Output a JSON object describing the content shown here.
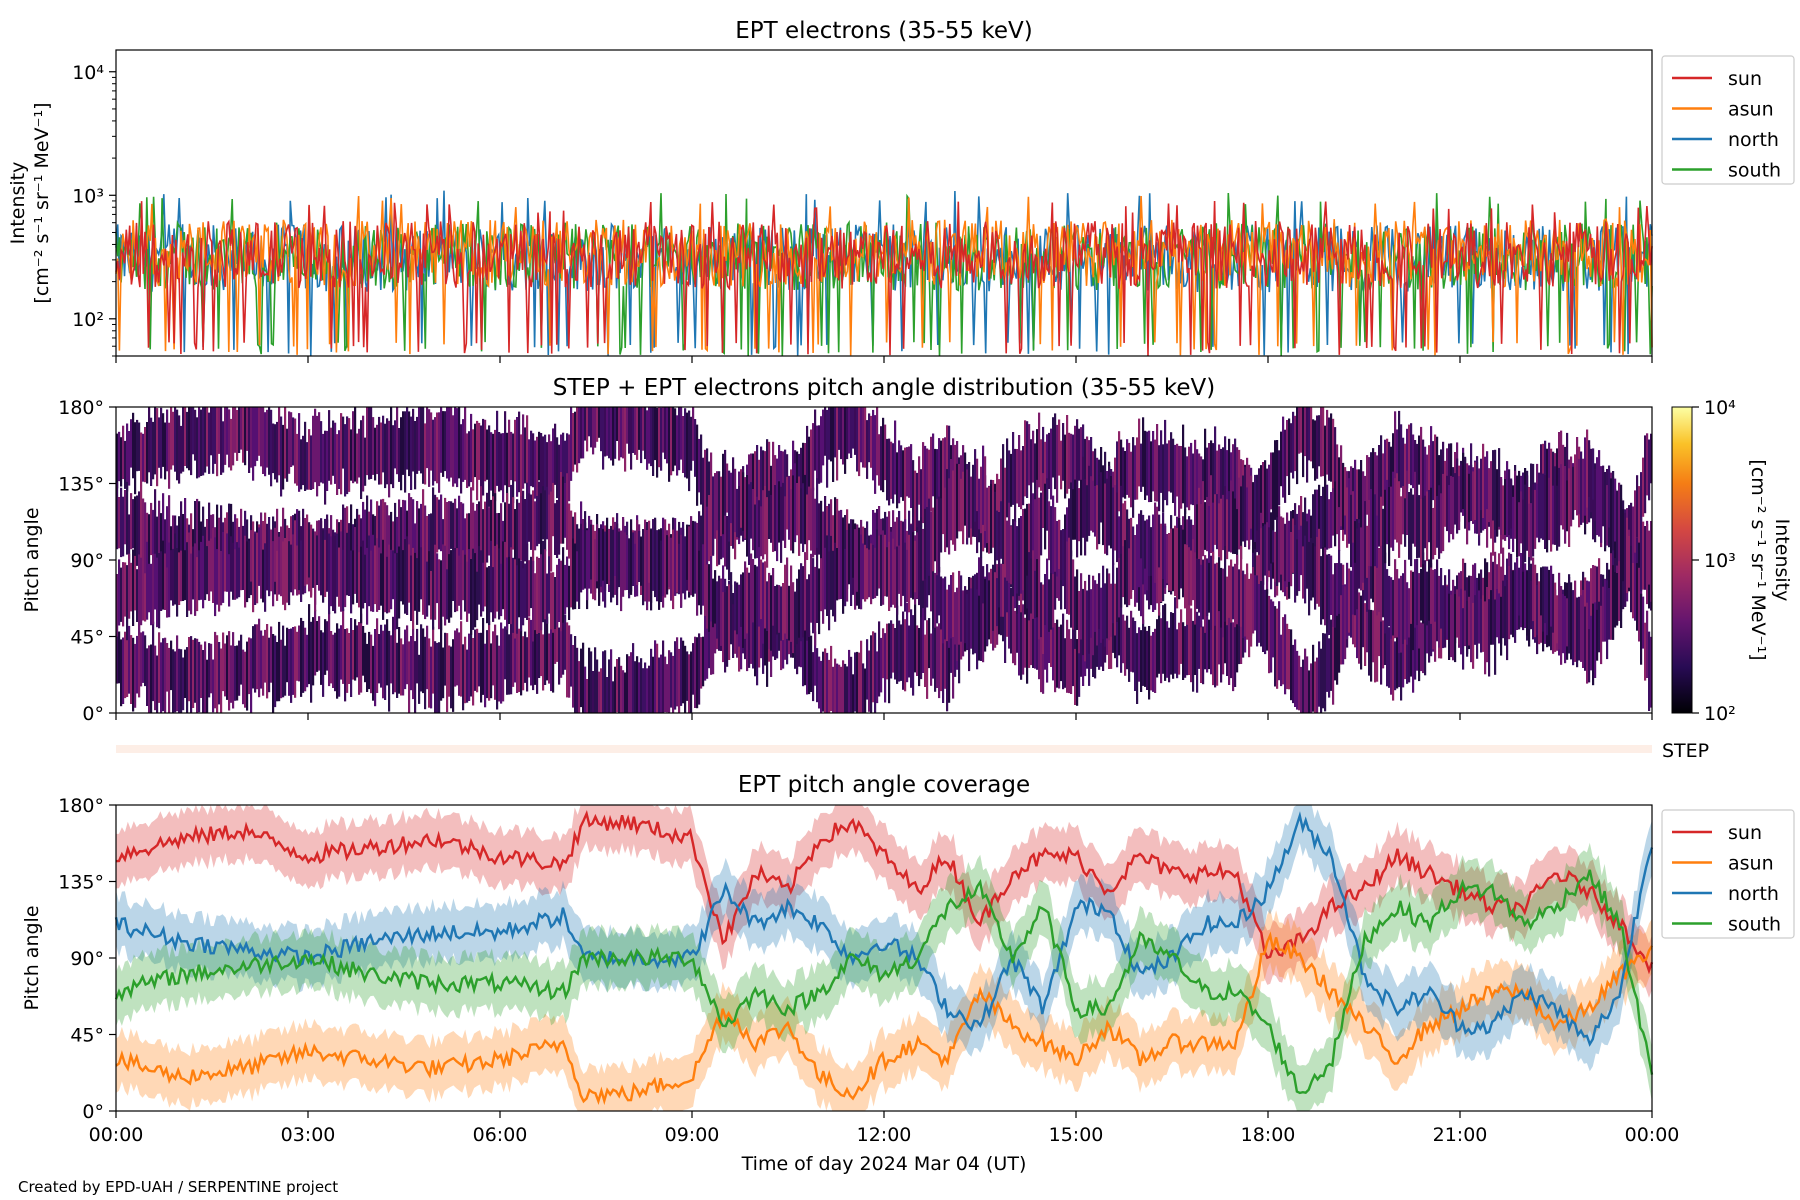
{
  "footer": "Created by EPD-UAH / SERPENTINE project",
  "colors": {
    "sun": "#d62728",
    "asun": "#ff7f0e",
    "north": "#1f77b4",
    "south": "#2ca02c"
  },
  "chart_data": [
    {
      "type": "line",
      "title": "EPT electrons (35-55 keV)",
      "ylabel_line1": "Intensity",
      "ylabel_line2": "[cm⁻² s⁻¹ sr⁻¹ MeV⁻¹]",
      "yscale": "log",
      "ylim": [
        50,
        15000
      ],
      "yticks": [
        "10⁴",
        "10³",
        "10²"
      ],
      "xlim_hours": [
        0,
        24
      ],
      "legend_position": "outside-right",
      "series": [
        {
          "name": "sun",
          "color": "#d62728",
          "typical_level": 330,
          "range": [
            50,
            900
          ]
        },
        {
          "name": "asun",
          "color": "#ff7f0e",
          "typical_level": 340,
          "range": [
            50,
            1000
          ]
        },
        {
          "name": "north",
          "color": "#1f77b4",
          "typical_level": 310,
          "range": [
            50,
            1100
          ]
        },
        {
          "name": "south",
          "color": "#2ca02c",
          "typical_level": 320,
          "range": [
            50,
            1050
          ]
        }
      ]
    },
    {
      "type": "heatmap",
      "title": "STEP + EPT electrons pitch angle distribution (35-55 keV)",
      "ylabel": "Pitch angle",
      "yticks": [
        "180°",
        "135°",
        "90°",
        "45°",
        "0°"
      ],
      "ylim": [
        0,
        180
      ],
      "colorbar": {
        "label": "Intensity",
        "unit": "[cm⁻² s⁻¹ sr⁻¹ MeV⁻¹]",
        "ticks": [
          "10⁴",
          "10³",
          "10²"
        ],
        "range": [
          100,
          10000
        ],
        "scale": "log",
        "colormap": "inferno"
      },
      "step_strip_label": "STEP"
    },
    {
      "type": "line",
      "title": "EPT pitch angle coverage",
      "ylabel": "Pitch angle",
      "yticks": [
        "180°",
        "135°",
        "90°",
        "45°",
        "0°"
      ],
      "ylim": [
        0,
        180
      ],
      "xlabel": "Time of day 2024 Mar 04 (UT)",
      "xticks": [
        "00:00",
        "03:00",
        "06:00",
        "09:00",
        "12:00",
        "15:00",
        "18:00",
        "21:00",
        "00:00"
      ],
      "legend_position": "outside-right",
      "hours": [
        0,
        1,
        2,
        3,
        4,
        5,
        6,
        7,
        7.3,
        8,
        9,
        9.5,
        10,
        10.5,
        11,
        11.5,
        12,
        12.5,
        13,
        13.5,
        14,
        14.5,
        15,
        15.5,
        16,
        16.5,
        17,
        17.5,
        18,
        18.5,
        19,
        19.5,
        20,
        20.5,
        21,
        21.5,
        22,
        22.5,
        23,
        23.5,
        24
      ],
      "series": [
        {
          "name": "sun",
          "color": "#d62728",
          "values": [
            150,
            160,
            165,
            150,
            155,
            160,
            150,
            145,
            170,
            170,
            160,
            100,
            140,
            130,
            160,
            170,
            150,
            130,
            150,
            110,
            140,
            150,
            150,
            130,
            150,
            140,
            140,
            140,
            90,
            100,
            120,
            130,
            150,
            140,
            130,
            120,
            120,
            140,
            130,
            110,
            85
          ]
        },
        {
          "name": "asun",
          "color": "#ff7f0e",
          "values": [
            30,
            20,
            25,
            35,
            30,
            25,
            30,
            40,
            10,
            10,
            20,
            60,
            40,
            50,
            20,
            10,
            30,
            40,
            30,
            70,
            50,
            40,
            30,
            50,
            30,
            40,
            40,
            40,
            100,
            90,
            70,
            50,
            30,
            50,
            60,
            70,
            70,
            50,
            60,
            80,
            95
          ]
        },
        {
          "name": "north",
          "color": "#1f77b4",
          "values": [
            110,
            100,
            95,
            90,
            100,
            105,
            105,
            115,
            90,
            90,
            90,
            130,
            110,
            120,
            110,
            90,
            100,
            90,
            60,
            50,
            90,
            60,
            120,
            120,
            80,
            90,
            110,
            110,
            130,
            170,
            150,
            80,
            60,
            70,
            50,
            50,
            70,
            60,
            40,
            70,
            160
          ]
        },
        {
          "name": "south",
          "color": "#2ca02c",
          "values": [
            70,
            80,
            85,
            90,
            80,
            75,
            75,
            70,
            90,
            90,
            90,
            50,
            70,
            60,
            70,
            90,
            80,
            90,
            120,
            130,
            90,
            120,
            60,
            60,
            100,
            90,
            70,
            70,
            50,
            10,
            30,
            100,
            120,
            110,
            130,
            130,
            110,
            120,
            140,
            110,
            20
          ]
        }
      ]
    }
  ],
  "legend": {
    "items": [
      "sun",
      "asun",
      "north",
      "south"
    ]
  }
}
